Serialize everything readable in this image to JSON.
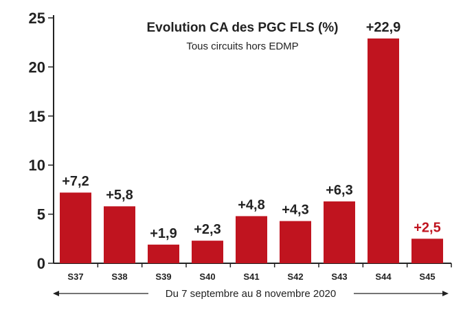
{
  "chart_data": {
    "type": "bar",
    "title": "Evolution CA des PGC FLS (%)",
    "subtitle": "Tous circuits hors EDMP",
    "categories": [
      "S37",
      "S38",
      "S39",
      "S40",
      "S41",
      "S42",
      "S43",
      "S44",
      "S45"
    ],
    "values": [
      7.2,
      5.8,
      1.9,
      2.3,
      4.8,
      4.3,
      6.3,
      22.9,
      2.5
    ],
    "value_labels": [
      "+7,2",
      "+5,8",
      "+1,9",
      "+2,3",
      "+4,8",
      "+4,3",
      "+6,3",
      "+22,9",
      "+2,5"
    ],
    "ylim": [
      0,
      25
    ],
    "yticks": [
      "0",
      "5",
      "10",
      "15",
      "20",
      "25"
    ],
    "xlabel": "",
    "ylabel": "",
    "period_label": "Du 7 septembre au 8 novembre 2020",
    "grid": false,
    "colors": {
      "bar": "#c0141f",
      "highlight_label": "#c0141f",
      "label": "#222222",
      "axis": "#222222"
    },
    "highlight_index": 8
  }
}
